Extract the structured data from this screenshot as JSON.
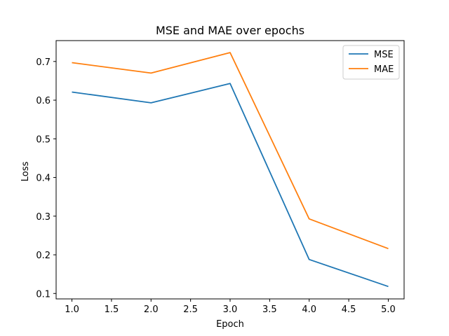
{
  "chart_data": {
    "type": "line",
    "title": "MSE and MAE over epochs",
    "xlabel": "Epoch",
    "ylabel": "Loss",
    "x": [
      1.0,
      2.0,
      3.0,
      4.0,
      5.0
    ],
    "xlim": [
      0.8,
      5.2
    ],
    "ylim": [
      0.086,
      0.754
    ],
    "xticks": [
      1.0,
      1.5,
      2.0,
      2.5,
      3.0,
      3.5,
      4.0,
      4.5,
      5.0
    ],
    "xtick_labels": [
      "1.0",
      "1.5",
      "2.0",
      "2.5",
      "3.0",
      "3.5",
      "4.0",
      "4.5",
      "5.0"
    ],
    "yticks": [
      0.1,
      0.2,
      0.3,
      0.4,
      0.5,
      0.6,
      0.7
    ],
    "ytick_labels": [
      "0.1",
      "0.2",
      "0.3",
      "0.4",
      "0.5",
      "0.6",
      "0.7"
    ],
    "grid": false,
    "legend_position": "top-right",
    "series": [
      {
        "name": "MSE",
        "color": "#1f77b4",
        "values": [
          0.621,
          0.593,
          0.643,
          0.188,
          0.118
        ]
      },
      {
        "name": "MAE",
        "color": "#ff7f0e",
        "values": [
          0.697,
          0.67,
          0.723,
          0.293,
          0.216
        ]
      }
    ]
  }
}
